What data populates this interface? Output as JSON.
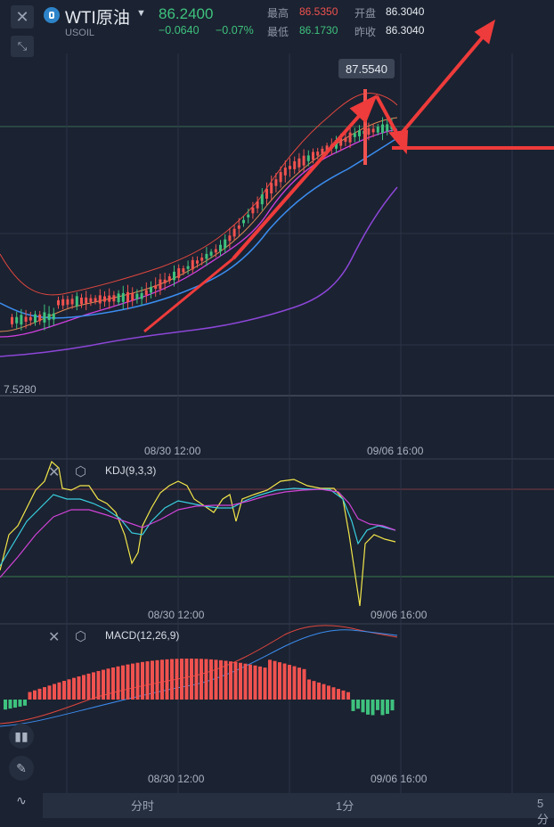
{
  "header": {
    "symbol_name": "WTI原油",
    "symbol_code": "USOIL",
    "last_price": "86.2400",
    "change": "−0.0640",
    "change_pct": "−0.07%",
    "stats": {
      "high_label": "最高",
      "high": "86.5350",
      "open_label": "开盘",
      "open": "86.3040",
      "low_label": "最低",
      "low": "86.1730",
      "prev_close_label": "昨收",
      "prev_close": "86.3040"
    }
  },
  "main_chart": {
    "crosshair_price": "87.5540",
    "left_price_label": "7.5280",
    "time_labels": [
      "08/30 12:00",
      "09/06 16:00"
    ]
  },
  "kdj": {
    "label": "KDJ(9,3,3)",
    "time_labels": [
      "08/30 12:00",
      "09/06 16:00"
    ]
  },
  "macd": {
    "label": "MACD(12,26,9)",
    "time_labels": [
      "08/30 12:00",
      "09/06 16:00"
    ]
  },
  "timeframes": [
    "分时",
    "1分",
    "5分"
  ],
  "colors": {
    "up": "#f0524f",
    "down": "#3ec27e",
    "background": "#1b2231",
    "ma_blue": "#3b8df0",
    "ma_purple": "#a04bdb",
    "kdj_yellow": "#f2e64a",
    "kdj_cyan": "#39d0e0",
    "kdj_magenta": "#d044d8"
  },
  "icons": [
    "close-icon",
    "collapse-icon",
    "settings-icon",
    "candles-icon",
    "pencil-icon",
    "indicator-icon"
  ]
}
